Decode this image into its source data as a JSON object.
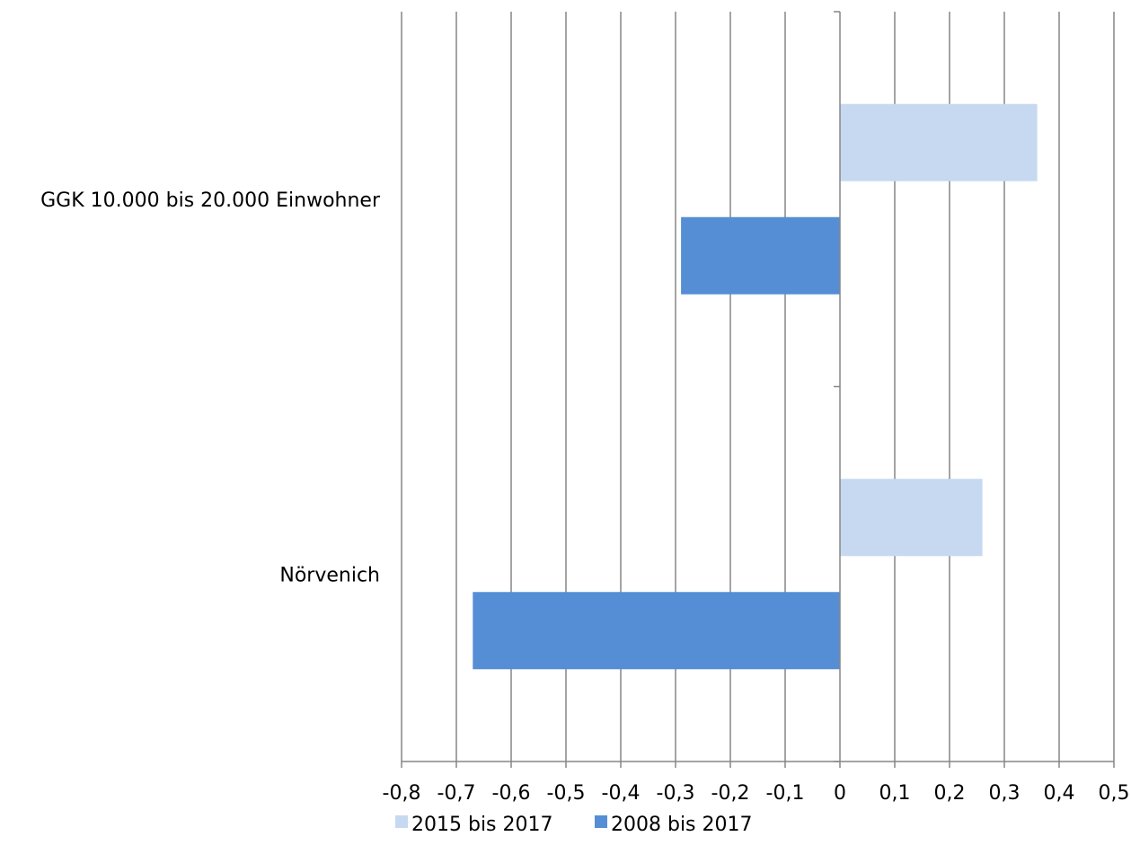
{
  "chart_data": {
    "type": "bar",
    "orientation": "horizontal",
    "categories": [
      "GGK 10.000 bis 20.000 Einwohner",
      "Nörvenich"
    ],
    "series": [
      {
        "name": "2015 bis 2017",
        "color": "#c6d9f1",
        "values": [
          0.36,
          0.26
        ]
      },
      {
        "name": "2008 bis 2017",
        "color": "#558ed5",
        "values": [
          -0.29,
          -0.67
        ]
      }
    ],
    "xlim": [
      -0.8,
      0.5
    ],
    "xticks": [
      "-0,8",
      "-0,7",
      "-0,6",
      "-0,5",
      "-0,4",
      "-0,3",
      "-0,2",
      "-0,1",
      "0",
      "0,1",
      "0,2",
      "0,3",
      "0,4",
      "0,5"
    ],
    "grid": "vertical",
    "legend_position": "bottom"
  }
}
